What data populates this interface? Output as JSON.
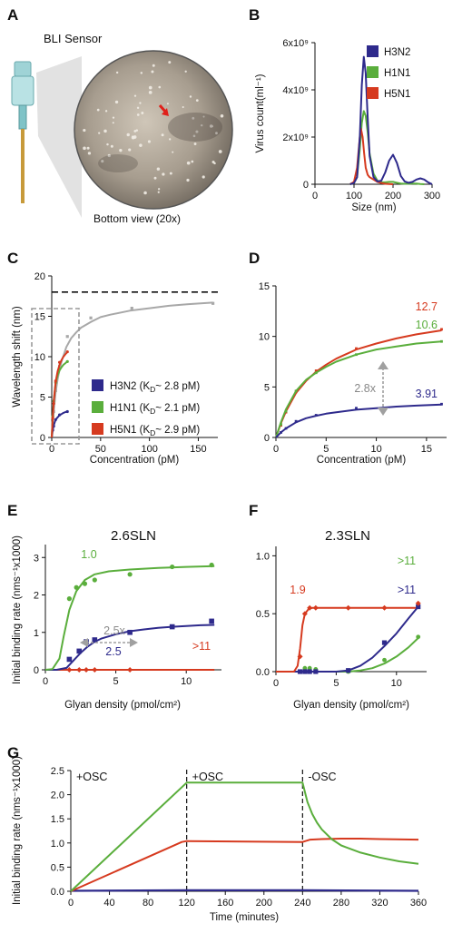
{
  "colors": {
    "H3N2": "#2e2a8c",
    "H1N1": "#5aae3c",
    "H5N1": "#d63a1f",
    "gray": "#a8a8a8",
    "axis": "#111111"
  },
  "panelA": {
    "label": "A",
    "sensor_label": "BLI Sensor",
    "view_label": "Bottom view (20x)"
  },
  "panelB": {
    "label": "B"
  },
  "panelC": {
    "label": "C"
  },
  "panelD": {
    "label": "D"
  },
  "panelE": {
    "label": "E"
  },
  "panelF": {
    "label": "F"
  },
  "panelG": {
    "label": "G"
  },
  "chart_data": [
    {
      "panel": "B",
      "type": "line",
      "xlabel": "Size (nm)",
      "ylabel": "Virus count(ml⁻¹)",
      "xlim": [
        0,
        300
      ],
      "ylim": [
        0,
        6000000000
      ],
      "xticks": [
        0,
        100,
        200,
        300
      ],
      "yticks": [
        0,
        2000000000,
        4000000000,
        6000000000
      ],
      "ytick_labels": [
        "0",
        "2x10⁹",
        "4x10⁹",
        "6x10⁹"
      ],
      "legend": [
        "H3N2",
        "H1N1",
        "H5N1"
      ],
      "legend_position": "top-right",
      "series": [
        {
          "name": "H3N2",
          "color": "#2e2a8c",
          "x": [
            90,
            100,
            108,
            115,
            120,
            125,
            130,
            135,
            140,
            150,
            160,
            170,
            180,
            190,
            200,
            210,
            220,
            230,
            240,
            250,
            260,
            270,
            280,
            290,
            300
          ],
          "y": [
            0,
            50000000,
            300000000,
            2000000000,
            4200000000,
            5400000000,
            4700000000,
            2800000000,
            1200000000,
            300000000,
            120000000,
            150000000,
            500000000,
            1000000000,
            1250000000,
            900000000,
            350000000,
            120000000,
            60000000,
            100000000,
            200000000,
            250000000,
            200000000,
            80000000,
            0
          ]
        },
        {
          "name": "H1N1",
          "color": "#5aae3c",
          "x": [
            90,
            100,
            108,
            115,
            120,
            125,
            130,
            135,
            140,
            150,
            160,
            170,
            180,
            190,
            200,
            210,
            220,
            230,
            240,
            250,
            260,
            270,
            280
          ],
          "y": [
            0,
            50000000,
            300000000,
            1500000000,
            2600000000,
            3100000000,
            2900000000,
            2200000000,
            1300000000,
            450000000,
            150000000,
            80000000,
            80000000,
            100000000,
            100000000,
            60000000,
            30000000,
            20000000,
            20000000,
            30000000,
            30000000,
            10000000,
            0
          ]
        },
        {
          "name": "H5N1",
          "color": "#d63a1f",
          "x": [
            90,
            100,
            108,
            115,
            118,
            122,
            126,
            130,
            135,
            140,
            150,
            160,
            170,
            180,
            190,
            200
          ],
          "y": [
            0,
            100000000,
            700000000,
            2000000000,
            2350000000,
            2000000000,
            1300000000,
            700000000,
            400000000,
            300000000,
            200000000,
            100000000,
            50000000,
            20000000,
            10000000,
            0
          ]
        }
      ]
    },
    {
      "panel": "C",
      "type": "line",
      "xlabel": "Concentration (pM)",
      "ylabel": "Wavelength shift (nm)",
      "xlim": [
        0,
        170
      ],
      "ylim": [
        0,
        20
      ],
      "xticks": [
        0,
        50,
        100,
        150
      ],
      "yticks": [
        0,
        5,
        10,
        15,
        20
      ],
      "plateau": 18,
      "legend": [
        {
          "name": "H3N2",
          "kd_label": "(K",
          "kd_sub": "D",
          "kd_val": "~ 2.8 pM)"
        },
        {
          "name": "H1N1",
          "kd_label": "(K",
          "kd_sub": "D",
          "kd_val": "~ 2.1 pM)"
        },
        {
          "name": "H5N1",
          "kd_label": "(K",
          "kd_sub": "D",
          "kd_val": "~ 2.9 pM)"
        }
      ],
      "series": [
        {
          "name": "gray",
          "color": "#a8a8a8",
          "x": [
            0,
            1,
            2,
            4,
            6,
            8,
            10,
            15,
            20,
            25,
            30,
            40,
            50,
            60,
            80,
            100,
            120,
            140,
            165
          ],
          "y": [
            0,
            1.7,
            3.3,
            5.6,
            7.2,
            8.4,
            9.4,
            11.2,
            12.3,
            13,
            13.6,
            14.3,
            14.9,
            15.2,
            15.7,
            16,
            16.3,
            16.5,
            16.7
          ],
          "points_x": [
            1,
            2,
            4,
            8,
            16,
            40,
            82,
            165
          ],
          "points_y": [
            1.8,
            3.2,
            5.8,
            8.8,
            12.5,
            14.8,
            16.0,
            16.6
          ]
        },
        {
          "name": "H3N2",
          "color": "#2e2a8c",
          "x": [
            0,
            1,
            2,
            4,
            6,
            8,
            10,
            12,
            14,
            16
          ],
          "y": [
            0,
            0.9,
            1.5,
            2.2,
            2.5,
            2.75,
            2.9,
            3.05,
            3.15,
            3.2
          ],
          "points_x": [
            1,
            2,
            4,
            8,
            16
          ],
          "points_y": [
            0.9,
            1.4,
            2.2,
            2.8,
            3.2
          ]
        },
        {
          "name": "H1N1",
          "color": "#5aae3c",
          "x": [
            0,
            1,
            2,
            4,
            6,
            8,
            10,
            12,
            14,
            16
          ],
          "y": [
            0,
            2.7,
            4.6,
            6.7,
            7.7,
            8.3,
            8.7,
            9.0,
            9.2,
            9.4
          ],
          "points_x": [
            1,
            2,
            4,
            8,
            16
          ],
          "points_y": [
            2.6,
            4.5,
            6.8,
            8.5,
            9.4
          ]
        },
        {
          "name": "H5N1",
          "color": "#d63a1f",
          "x": [
            0,
            1,
            2,
            4,
            6,
            8,
            10,
            12,
            14,
            16
          ],
          "y": [
            0,
            2.5,
            4.4,
            6.9,
            8.2,
            9.0,
            9.6,
            10.0,
            10.3,
            10.6
          ],
          "points_x": [
            1,
            2,
            4,
            8,
            16
          ],
          "points_y": [
            2.4,
            4.2,
            7.0,
            9.3,
            10.6
          ]
        }
      ]
    },
    {
      "panel": "D",
      "type": "line",
      "xlabel": "Concentration (pM)",
      "ylabel": "",
      "xlim": [
        0,
        17
      ],
      "ylim": [
        0,
        15
      ],
      "xticks": [
        0,
        5,
        10,
        15
      ],
      "yticks": [
        0,
        5,
        10,
        15
      ],
      "fold_label": "2.8x",
      "series": [
        {
          "name": "H5N1",
          "label": "12.7",
          "color": "#d63a1f",
          "x": [
            0,
            0.5,
            1,
            2,
            3,
            4,
            5,
            6,
            8,
            10,
            12,
            14,
            16.5
          ],
          "y": [
            0,
            1.4,
            2.6,
            4.4,
            5.6,
            6.5,
            7.2,
            7.8,
            8.7,
            9.3,
            9.8,
            10.2,
            10.6
          ],
          "points_x": [
            0.5,
            1,
            2,
            4,
            8,
            16.5
          ],
          "points_y": [
            1.2,
            2.5,
            4.5,
            6.6,
            8.8,
            10.7
          ]
        },
        {
          "name": "H1N1",
          "label": "10.6",
          "color": "#5aae3c",
          "x": [
            0,
            0.5,
            1,
            2,
            3,
            4,
            5,
            6,
            8,
            10,
            12,
            14,
            16.5
          ],
          "y": [
            0,
            1.5,
            2.8,
            4.6,
            5.7,
            6.4,
            7.0,
            7.5,
            8.2,
            8.7,
            9.0,
            9.3,
            9.5
          ],
          "points_x": [
            0.5,
            1,
            2,
            4,
            8,
            16.5
          ],
          "points_y": [
            1.3,
            2.6,
            4.6,
            6.4,
            8.2,
            9.5
          ]
        },
        {
          "name": "H3N2",
          "label": "3.91",
          "color": "#2e2a8c",
          "x": [
            0,
            0.5,
            1,
            2,
            3,
            4,
            5,
            6,
            8,
            10,
            12,
            14,
            16.5
          ],
          "y": [
            0,
            0.5,
            0.9,
            1.5,
            1.9,
            2.15,
            2.35,
            2.5,
            2.75,
            2.9,
            3.05,
            3.15,
            3.25
          ],
          "points_x": [
            0.5,
            1,
            2,
            4,
            8,
            16.5
          ],
          "points_y": [
            0.5,
            0.9,
            1.6,
            2.2,
            2.9,
            3.3
          ]
        }
      ]
    },
    {
      "panel": "E",
      "type": "line",
      "title": "2.6SLN",
      "xlabel": "Glyan density (pmol/cm²)",
      "ylabel": "Initial binding rate (nms⁻¹x1000)",
      "xlim": [
        0,
        12.5
      ],
      "ylim": [
        0,
        3.2
      ],
      "xticks": [
        0,
        5,
        10
      ],
      "yticks": [
        0,
        1,
        2,
        3
      ],
      "fold_label": "2.5x",
      "series": [
        {
          "name": "H1N1",
          "label": "1.0",
          "color": "#5aae3c",
          "x": [
            0,
            0.5,
            1,
            1.3,
            1.7,
            2.2,
            2.8,
            3.5,
            4.5,
            6,
            8,
            10,
            12
          ],
          "y": [
            0,
            0.02,
            0.3,
            0.9,
            1.6,
            2.1,
            2.4,
            2.55,
            2.63,
            2.68,
            2.72,
            2.75,
            2.77
          ],
          "points_x": [
            1.7,
            2.2,
            2.8,
            3.5,
            6,
            9,
            11.8
          ],
          "points_y": [
            1.9,
            2.2,
            2.3,
            2.4,
            2.55,
            2.75,
            2.8
          ]
        },
        {
          "name": "H3N2",
          "label": "2.5",
          "color": "#2e2a8c",
          "x": [
            0,
            0.8,
            1.5,
            2,
            2.5,
            3,
            3.5,
            4,
            5,
            6,
            7,
            8,
            9,
            10,
            11,
            12
          ],
          "y": [
            0,
            0,
            0.05,
            0.25,
            0.45,
            0.62,
            0.75,
            0.84,
            0.95,
            1.03,
            1.08,
            1.12,
            1.15,
            1.17,
            1.19,
            1.2
          ],
          "points_x": [
            1.7,
            2.4,
            2.9,
            3.5,
            6,
            9,
            11.8
          ],
          "points_y": [
            0.28,
            0.5,
            0.75,
            0.8,
            1.0,
            1.15,
            1.3
          ]
        },
        {
          "name": "H5N1",
          "label": ">11",
          "color": "#d63a1f",
          "x": [
            0,
            12
          ],
          "y": [
            0,
            0
          ],
          "points_x": [
            1.7,
            2.4,
            2.9,
            3.5,
            6
          ],
          "points_y": [
            0,
            0,
            0,
            0,
            0
          ]
        }
      ]
    },
    {
      "panel": "F",
      "type": "line",
      "title": "2.3SLN",
      "xlabel": "Glyan density (pmol/cm²)",
      "ylabel": "",
      "xlim": [
        0,
        12.5
      ],
      "ylim": [
        0,
        1.05
      ],
      "xticks": [
        0,
        5,
        10
      ],
      "yticks": [
        0,
        0.5,
        1.0
      ],
      "ytick_labels": [
        "0.0",
        "0.5",
        "1.0"
      ],
      "series": [
        {
          "name": "H5N1",
          "label": "1.9",
          "color": "#d63a1f",
          "x": [
            0,
            1.5,
            1.8,
            2.0,
            2.2,
            2.4,
            2.7,
            3.0,
            4,
            6,
            8,
            10,
            11.8
          ],
          "y": [
            0,
            0,
            0.05,
            0.2,
            0.4,
            0.5,
            0.54,
            0.55,
            0.55,
            0.55,
            0.55,
            0.55,
            0.55
          ],
          "points_x": [
            2.0,
            2.4,
            2.8,
            3.3,
            6,
            9,
            11.8
          ],
          "points_y": [
            0.13,
            0.5,
            0.55,
            0.55,
            0.55,
            0.55,
            0.59
          ]
        },
        {
          "name": "H3N2",
          "label": ">11",
          "color": "#2e2a8c",
          "x": [
            0,
            5,
            6,
            7,
            8,
            9,
            10,
            11,
            11.8
          ],
          "y": [
            0,
            0,
            0.01,
            0.05,
            0.12,
            0.22,
            0.33,
            0.46,
            0.56
          ],
          "points_x": [
            2.0,
            2.4,
            2.8,
            3.3,
            6,
            9,
            11.8
          ],
          "points_y": [
            0,
            0,
            0,
            0,
            0.01,
            0.25,
            0.56
          ]
        },
        {
          "name": "H1N1",
          "label": ">11",
          "color": "#5aae3c",
          "x": [
            0,
            6,
            7,
            8,
            9,
            10,
            11,
            11.8
          ],
          "y": [
            0,
            0,
            0.01,
            0.03,
            0.07,
            0.13,
            0.21,
            0.29
          ],
          "points_x": [
            2.0,
            2.4,
            2.8,
            3.3,
            6,
            9,
            11.8
          ],
          "points_y": [
            0,
            0.03,
            0.03,
            0.02,
            0,
            0.1,
            0.3
          ]
        }
      ]
    },
    {
      "panel": "G",
      "type": "line",
      "xlabel": "Time (minutes)",
      "ylabel": "Initial binding rate (nms⁻¹x1000)",
      "xlim": [
        0,
        360
      ],
      "ylim": [
        0,
        2.5
      ],
      "xticks": [
        0,
        40,
        80,
        120,
        160,
        200,
        240,
        280,
        320,
        360
      ],
      "yticks": [
        0,
        0.5,
        1.0,
        1.5,
        2.0,
        2.5
      ],
      "ytick_labels": [
        "0.0",
        "0.5",
        "1.0",
        "1.5",
        "2.0",
        "2.5"
      ],
      "phase_labels": [
        "+OSC",
        "+OSC",
        "-OSC"
      ],
      "phase_boundaries": [
        120,
        240
      ],
      "series": [
        {
          "name": "H1N1",
          "color": "#5aae3c",
          "x": [
            0,
            120,
            240,
            245,
            250,
            255,
            260,
            270,
            280,
            300,
            320,
            340,
            360
          ],
          "y": [
            0,
            2.25,
            2.25,
            1.85,
            1.6,
            1.42,
            1.28,
            1.08,
            0.95,
            0.8,
            0.7,
            0.62,
            0.57
          ]
        },
        {
          "name": "H5N1",
          "color": "#d63a1f",
          "x": [
            0,
            115,
            120,
            240,
            248,
            260,
            280,
            300,
            320,
            360
          ],
          "y": [
            0,
            1.02,
            1.04,
            1.02,
            1.07,
            1.08,
            1.09,
            1.09,
            1.08,
            1.07
          ]
        },
        {
          "name": "H3N2",
          "color": "#2e2a8c",
          "x": [
            0,
            120,
            240,
            360
          ],
          "y": [
            0.01,
            0.02,
            0.02,
            0.01
          ]
        }
      ]
    }
  ]
}
